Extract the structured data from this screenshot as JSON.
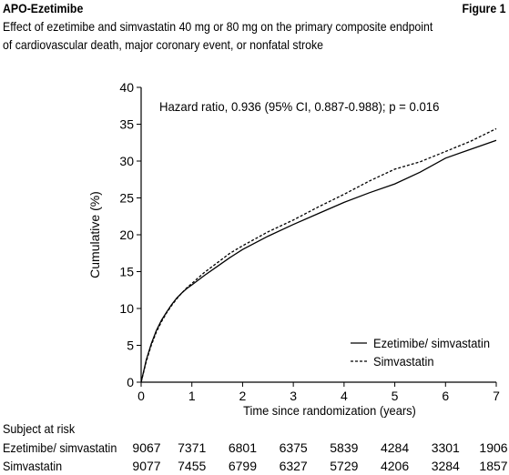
{
  "header": {
    "left": "APO-Ezetimibe",
    "right": "Figure 1"
  },
  "caption": {
    "line1": "Effect of ezetimibe and simvastatin 40 mg or 80 mg on the primary composite endpoint",
    "line2": "of cardiovascular death, major coronary event, or nonfatal stroke"
  },
  "chart_data": {
    "type": "line",
    "title": "",
    "annotation": "Hazard ratio, 0.936 (95% CI, 0.887-0.988); p = 0.016",
    "xlabel": "Time since randomization (years)",
    "ylabel": "Cumulative (%)",
    "xlim": [
      0,
      7
    ],
    "ylim": [
      0,
      40
    ],
    "xticks": [
      "0",
      "1",
      "2",
      "3",
      "4",
      "5",
      "6",
      "7"
    ],
    "yticks": [
      "0",
      "5",
      "10",
      "15",
      "20",
      "25",
      "30",
      "35",
      "40"
    ],
    "legend_position": "bottom-right",
    "grid": false,
    "series": [
      {
        "name": "Ezetimibe/ simvastatin",
        "style": "solid",
        "x": [
          0,
          0.05,
          0.1,
          0.2,
          0.3,
          0.4,
          0.5,
          0.6,
          0.7,
          0.8,
          0.9,
          1.0,
          1.25,
          1.5,
          1.75,
          2.0,
          2.5,
          3.0,
          3.5,
          4.0,
          4.5,
          5.0,
          5.5,
          6.0,
          6.5,
          7.0
        ],
        "y": [
          0,
          1.5,
          3,
          5.2,
          7,
          8.4,
          9.5,
          10.5,
          11.4,
          12.1,
          12.7,
          13.2,
          14.5,
          15.7,
          16.9,
          18.0,
          19.8,
          21.4,
          22.9,
          24.4,
          25.7,
          26.9,
          28.5,
          30.4,
          31.6,
          32.8
        ]
      },
      {
        "name": "Simvastatin",
        "style": "dashed",
        "x": [
          0,
          0.05,
          0.1,
          0.2,
          0.3,
          0.4,
          0.5,
          0.6,
          0.7,
          0.8,
          0.9,
          1.0,
          1.25,
          1.5,
          1.75,
          2.0,
          2.5,
          3.0,
          3.5,
          4.0,
          4.5,
          5.0,
          5.5,
          6.0,
          6.5,
          7.0
        ],
        "y": [
          0,
          1.4,
          2.8,
          5.0,
          6.8,
          8.2,
          9.4,
          10.4,
          11.3,
          12.1,
          12.8,
          13.4,
          14.9,
          16.2,
          17.5,
          18.5,
          20.4,
          22.0,
          23.8,
          25.5,
          27.3,
          28.9,
          29.9,
          31.3,
          32.7,
          34.4
        ]
      }
    ],
    "at_risk": {
      "title": "Subject at risk",
      "rows": [
        {
          "label": "Ezetimibe/ simvastatin",
          "values": [
            "9067",
            "7371",
            "6801",
            "6375",
            "5839",
            "4284",
            "3301",
            "1906"
          ]
        },
        {
          "label": "Simvastatin",
          "values": [
            "9077",
            "7455",
            "6799",
            "6327",
            "5729",
            "4206",
            "3284",
            "1857"
          ]
        }
      ]
    }
  }
}
